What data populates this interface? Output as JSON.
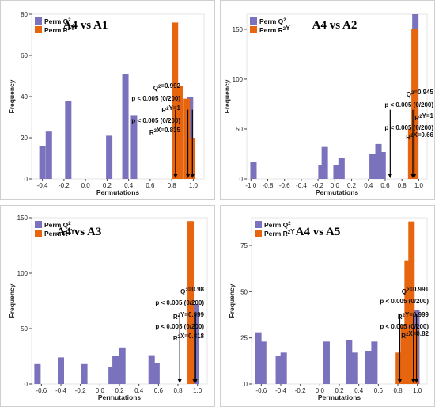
{
  "colors": {
    "perm_q2": "#7b72bd",
    "perm_r2y": "#e8650f"
  },
  "chart_data": [
    {
      "type": "bar",
      "title": "A4 vs A1",
      "xlabel": "Permutations",
      "ylabel": "Frequency",
      "xlim": [
        -0.5,
        1.1
      ],
      "ylim": [
        0,
        80
      ],
      "xticks": [
        -0.4,
        -0.2,
        0.0,
        0.2,
        0.4,
        0.6,
        0.8,
        1.0
      ],
      "xtick_labels": [
        "-0.4",
        "-0.2",
        "0.0",
        "0.2",
        "0.4",
        "0.6",
        "0.8",
        "1.0"
      ],
      "yticks": [
        0,
        20,
        40,
        60,
        80
      ],
      "ytick_labels": [
        "0",
        "20",
        "40",
        "60",
        "80"
      ],
      "legend": [
        "Perm Q²",
        "Perm R²Y"
      ],
      "series": [
        {
          "name": "Perm Q²",
          "x": [
            -0.4,
            -0.34,
            -0.16,
            0.22,
            0.37,
            0.45,
            0.97
          ],
          "y": [
            16,
            23,
            38,
            21,
            51,
            31,
            40
          ]
        },
        {
          "name": "Perm R²Y",
          "x": [
            0.83,
            0.88,
            0.94,
            0.99
          ],
          "y": [
            76,
            45,
            39,
            20
          ]
        }
      ],
      "arrows": [
        0.835,
        0.95,
        0.992
      ],
      "annotations": [
        "Q²=0.992",
        "p < 0.005 (0/200)",
        "R²Y=1",
        "p < 0.005 (0/200)",
        "R²X=0.835"
      ]
    },
    {
      "type": "bar",
      "title": "A4 vs A2",
      "xlabel": "Permutations",
      "ylabel": "Frequency",
      "xlim": [
        -1.05,
        1.1
      ],
      "ylim": [
        0,
        165
      ],
      "xticks": [
        -1.0,
        -0.8,
        -0.6,
        -0.4,
        -0.2,
        0.0,
        0.2,
        0.4,
        0.6,
        0.8,
        1.0
      ],
      "xtick_labels": [
        "-1.0",
        "-0.8",
        "-0.6",
        "-0.4",
        "-0.2",
        "0.0",
        "0.2",
        "0.4",
        "0.6",
        "0.8",
        "1.0"
      ],
      "yticks": [
        0,
        50,
        100,
        150
      ],
      "ytick_labels": [
        "0",
        "50",
        "100",
        "150"
      ],
      "legend": [
        "Perm Q²",
        "Perm R²Y"
      ],
      "series": [
        {
          "name": "Perm Q²",
          "x": [
            -0.97,
            -0.16,
            -0.12,
            0.02,
            0.08,
            0.45,
            0.52,
            0.57,
            0.96
          ],
          "y": [
            17,
            14,
            32,
            14,
            21,
            25,
            35,
            27,
            165
          ]
        },
        {
          "name": "Perm R²Y",
          "x": [
            0.91,
            0.95
          ],
          "y": [
            50,
            150
          ]
        }
      ],
      "arrows": [
        0.66,
        0.93,
        0.945
      ],
      "annotations": [
        "Q²=0.945",
        "p < 0.005 (0/200)",
        "R²Y=1",
        "p < 0.005 (0/200)",
        "R²X=0.66"
      ]
    },
    {
      "type": "bar",
      "title": "A4 vs A3",
      "xlabel": "Permutations",
      "ylabel": "Frequency",
      "xlim": [
        -0.7,
        1.1
      ],
      "ylim": [
        0,
        150
      ],
      "xticks": [
        -0.6,
        -0.4,
        -0.2,
        0.0,
        0.2,
        0.4,
        0.6,
        0.8,
        1.0
      ],
      "xtick_labels": [
        "-0.6",
        "-0.4",
        "-0.2",
        "0.0",
        "0.2",
        "0.4",
        "0.6",
        "0.8",
        "1.0"
      ],
      "yticks": [
        0,
        50,
        100,
        150
      ],
      "ytick_labels": [
        "0",
        "50",
        "100",
        "150"
      ],
      "legend": [
        "Perm Q²",
        "Perm R²Y"
      ],
      "series": [
        {
          "name": "Perm Q²",
          "x": [
            -0.64,
            -0.4,
            -0.16,
            0.12,
            0.16,
            0.23,
            0.53,
            0.58,
            0.98
          ],
          "y": [
            18,
            24,
            18,
            15,
            25,
            33,
            26,
            19,
            72
          ]
        },
        {
          "name": "Perm R²Y",
          "x": [
            0.93
          ],
          "y": [
            147
          ]
        }
      ],
      "arrows": [
        0.818,
        0.97,
        0.98
      ],
      "annotations": [
        "Q²=0.98",
        "p < 0.005 (0/200)",
        "R²Y=0.999",
        "p < 0.005 (0/200)",
        "R²X=0.818"
      ]
    },
    {
      "type": "bar",
      "title": "A4 vs A5",
      "xlabel": "Permutations",
      "ylabel": "Frequency",
      "xlim": [
        -0.7,
        1.1
      ],
      "ylim": [
        0,
        90
      ],
      "xticks": [
        -0.6,
        -0.4,
        -0.2,
        0.0,
        0.2,
        0.4,
        0.6,
        0.8,
        1.0
      ],
      "xtick_labels": [
        "-0.6",
        "-0.4",
        "-0.2",
        "0.0",
        "0.2",
        "0.4",
        "0.6",
        "0.8",
        "1.0"
      ],
      "yticks": [
        0,
        25,
        50,
        75
      ],
      "ytick_labels": [
        "0",
        "25",
        "50",
        "75"
      ],
      "legend": [
        "Perm Q²",
        "Perm R²Y"
      ],
      "series": [
        {
          "name": "Perm Q²",
          "x": [
            -0.63,
            -0.58,
            -0.42,
            -0.37,
            0.07,
            0.3,
            0.36,
            0.5,
            0.56,
            0.99
          ],
          "y": [
            28,
            23,
            15,
            17,
            23,
            24,
            17,
            18,
            23,
            40
          ]
        },
        {
          "name": "Perm R²Y",
          "x": [
            0.81,
            0.86,
            0.9,
            0.94,
            0.98
          ],
          "y": [
            17,
            32,
            67,
            88,
            30
          ]
        }
      ],
      "arrows": [
        0.82,
        0.96,
        0.991
      ],
      "annotations": [
        "Q²=0.991",
        "p < 0.005 (0/200)",
        "R²Y=0.999",
        "p < 0.005 (0/200)",
        "R²X=0.82"
      ]
    }
  ]
}
